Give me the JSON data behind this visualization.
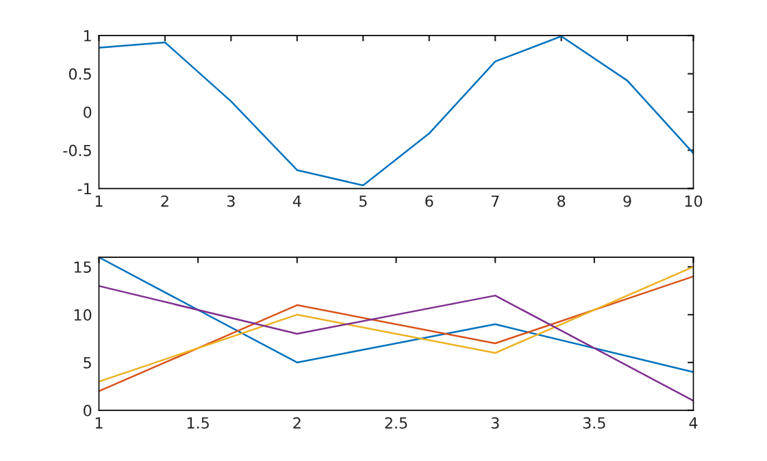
{
  "chart_data": [
    {
      "type": "line",
      "x": [
        1,
        2,
        3,
        4,
        5,
        6,
        7,
        8,
        9,
        10
      ],
      "series": [
        {
          "color": "#0072bd",
          "values": [
            0.84,
            0.91,
            0.14,
            -0.76,
            -0.96,
            -0.28,
            0.66,
            0.99,
            0.41,
            -0.54
          ]
        }
      ],
      "xlim": [
        1,
        10
      ],
      "xticks": [
        1,
        2,
        3,
        4,
        5,
        6,
        7,
        8,
        9,
        10
      ],
      "ylim": [
        -1,
        1
      ],
      "yticks": [
        -1,
        -0.5,
        0,
        0.5,
        1
      ],
      "grid": false,
      "legend": false
    },
    {
      "type": "line",
      "x": [
        1,
        2,
        3,
        4
      ],
      "series": [
        {
          "color": "#0072bd",
          "values": [
            16,
            5,
            9,
            4
          ]
        },
        {
          "color": "#d95319",
          "values": [
            2,
            11,
            7,
            14
          ]
        },
        {
          "color": "#edb120",
          "values": [
            3,
            10,
            6,
            15
          ]
        },
        {
          "color": "#7e2f8e",
          "values": [
            13,
            8,
            12,
            1
          ]
        }
      ],
      "xlim": [
        1,
        4
      ],
      "xticks": [
        1,
        1.5,
        2,
        2.5,
        3,
        3.5,
        4
      ],
      "ylim": [
        0,
        16
      ],
      "yticks": [
        0,
        5,
        10,
        15
      ],
      "grid": false,
      "legend": false
    }
  ]
}
